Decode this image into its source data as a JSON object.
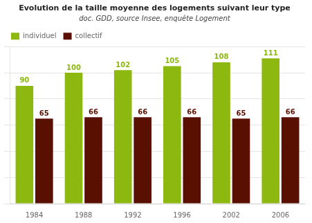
{
  "chart_data": {
    "type": "bar",
    "title": "Evolution de la taille moyenne des logements suivant leur type",
    "subtitle": "doc. GDD, source Insee, enquête Logement",
    "categories": [
      "1984",
      "1988",
      "1992",
      "1996",
      "2002",
      "2006"
    ],
    "series": [
      {
        "name": "individuel",
        "color": "#8db810",
        "values": [
          90,
          100,
          102,
          105,
          108,
          111
        ]
      },
      {
        "name": "collectif",
        "color": "#5a1000",
        "values": [
          65,
          66,
          66,
          66,
          65,
          66
        ]
      }
    ],
    "ylim": [
      0,
      120
    ],
    "yticks": [
      0,
      20,
      40,
      60,
      80,
      100,
      120
    ],
    "grid": true,
    "legend": "upper left",
    "data_labels": true,
    "tick_labels": "x"
  }
}
